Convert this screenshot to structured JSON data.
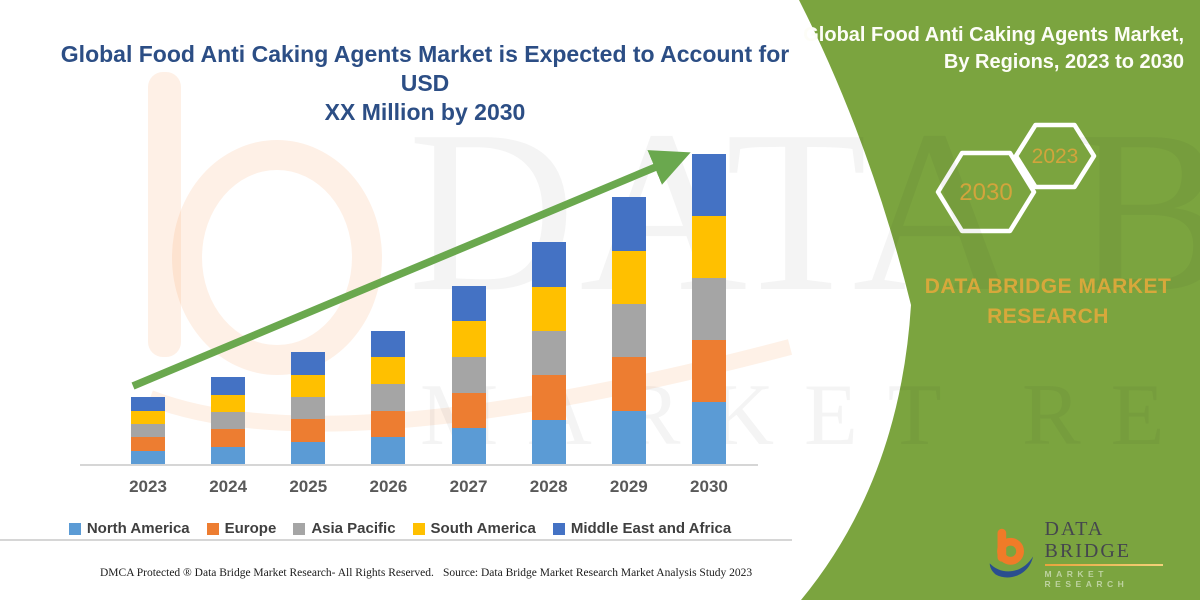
{
  "header": {
    "title_line1": "Global Food Anti Caking Agents Market is Expected to Account for USD",
    "title_line2": "XX Million by 2030"
  },
  "side_panel": {
    "title_line1": "Global Food Anti Caking Agents Market,",
    "title_line2": "By Regions, 2023 to 2030",
    "hexagon_left_year": "2030",
    "hexagon_right_year": "2023",
    "brand_line1": "DATA BRIDGE MARKET",
    "brand_line2": "RESEARCH"
  },
  "chart_data": {
    "type": "bar",
    "stacked": true,
    "title": "Global Food Anti Caking Agents Market is Expected to Account for USD XX Million by 2030",
    "categories": [
      "2023",
      "2024",
      "2025",
      "2026",
      "2027",
      "2028",
      "2029",
      "2030"
    ],
    "series": [
      {
        "name": "North America",
        "color": "#5B9BD5",
        "values": [
          4.3,
          5.6,
          7.2,
          8.6,
          11.5,
          14.3,
          17.2,
          20.0
        ]
      },
      {
        "name": "Europe",
        "color": "#ED7D31",
        "values": [
          4.3,
          5.6,
          7.2,
          8.6,
          11.5,
          14.3,
          17.2,
          20.0
        ]
      },
      {
        "name": "Asia Pacific",
        "color": "#A5A5A5",
        "values": [
          4.3,
          5.6,
          7.2,
          8.6,
          11.5,
          14.3,
          17.2,
          20.0
        ]
      },
      {
        "name": "South America",
        "color": "#FFC000",
        "values": [
          4.3,
          5.6,
          7.2,
          8.6,
          11.5,
          14.3,
          17.2,
          20.0
        ]
      },
      {
        "name": "Middle East and Africa",
        "color": "#4472C4",
        "values": [
          4.3,
          5.6,
          7.2,
          8.6,
          11.5,
          14.3,
          17.2,
          20.0
        ]
      }
    ],
    "totals_relative": [
      21.3,
      28.1,
      36.1,
      42.9,
      57.4,
      71.6,
      86.1,
      100
    ],
    "values_note": "No numeric axis is shown in the chart (values labeled as XX); series values are relative units estimated from bar heights with 2030 total = 100, split equally across the five visible region segments.",
    "xlabel": "",
    "ylabel": "",
    "value_axis_visible": false,
    "grid": false,
    "legend_position": "bottom",
    "trend_arrow": {
      "present": true,
      "color": "#6aa84e",
      "direction": "up-right"
    }
  },
  "footer": {
    "dmca": "DMCA Protected ® Data Bridge Market Research- All Rights Reserved.",
    "source": "Source: Data Bridge Market Research Market Analysis Study 2023"
  },
  "logo": {
    "name": "DATA BRIDGE",
    "subtitle": "MARKET RESEARCH"
  },
  "watermark": {
    "line1": "DATA BRIDGE",
    "line2": "MARKET RESEARCH"
  },
  "colors": {
    "panel_green": "#7ba43f",
    "arrow_green": "#6aa84e",
    "title_navy": "#2c4e85",
    "accent_gold": "#d7a83b",
    "axis_gray": "#d6d6d6",
    "logo_orange": "#f07b28",
    "logo_blue": "#2a4e8f"
  }
}
